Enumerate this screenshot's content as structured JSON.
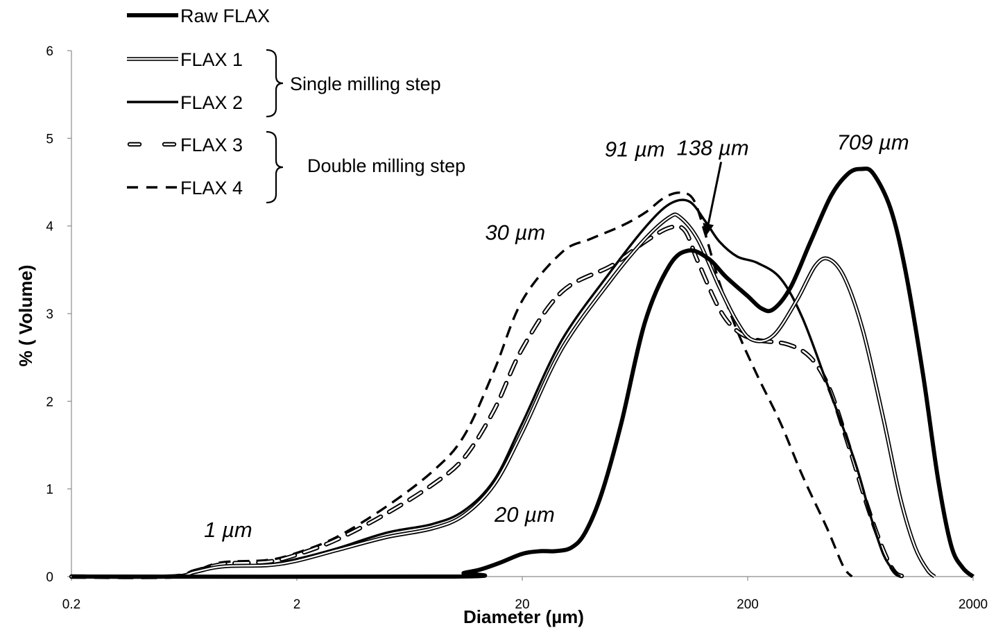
{
  "chart_data": {
    "type": "line",
    "xscale": "log",
    "xlim": [
      0.2,
      2000
    ],
    "ylim": [
      0,
      6
    ],
    "xlabel": "Diameter (µm)",
    "ylabel": "% ( Volume)",
    "x_ticks": [
      0.2,
      2,
      20,
      200,
      2000
    ],
    "x_tick_labels": [
      "0.2",
      "2",
      "20",
      "200",
      "2000"
    ],
    "y_ticks": [
      0,
      1,
      2,
      3,
      4,
      5,
      6
    ],
    "y_tick_labels": [
      "0",
      "1",
      "2",
      "3",
      "4",
      "5",
      "6"
    ],
    "grid": false,
    "legend_position": "top-left",
    "series": [
      {
        "name": "Raw FLAX",
        "style": "thick-solid",
        "color": "#000000",
        "points": [
          [
            0.2,
            0
          ],
          [
            10,
            0
          ],
          [
            11,
            0.04
          ],
          [
            13,
            0.08
          ],
          [
            16,
            0.16
          ],
          [
            20,
            0.26
          ],
          [
            24,
            0.29
          ],
          [
            28,
            0.29
          ],
          [
            33,
            0.33
          ],
          [
            38,
            0.5
          ],
          [
            45,
            0.95
          ],
          [
            55,
            1.75
          ],
          [
            70,
            2.9
          ],
          [
            90,
            3.55
          ],
          [
            110,
            3.72
          ],
          [
            135,
            3.62
          ],
          [
            160,
            3.42
          ],
          [
            200,
            3.2
          ],
          [
            230,
            3.06
          ],
          [
            260,
            3.05
          ],
          [
            310,
            3.3
          ],
          [
            380,
            3.82
          ],
          [
            470,
            4.35
          ],
          [
            560,
            4.6
          ],
          [
            640,
            4.65
          ],
          [
            720,
            4.6
          ],
          [
            860,
            4.2
          ],
          [
            1000,
            3.5
          ],
          [
            1200,
            2.3
          ],
          [
            1400,
            1.1
          ],
          [
            1600,
            0.35
          ],
          [
            1800,
            0.1
          ],
          [
            2000,
            0
          ]
        ]
      },
      {
        "name": "FLAX 1",
        "style": "double-line",
        "color": "#000000",
        "points": [
          [
            0.2,
            0
          ],
          [
            0.55,
            0
          ],
          [
            0.7,
            0.05
          ],
          [
            0.85,
            0.1
          ],
          [
            1,
            0.12
          ],
          [
            1.5,
            0.13
          ],
          [
            2,
            0.18
          ],
          [
            3,
            0.3
          ],
          [
            5,
            0.45
          ],
          [
            8,
            0.55
          ],
          [
            11,
            0.7
          ],
          [
            15,
            1.05
          ],
          [
            20,
            1.65
          ],
          [
            30,
            2.6
          ],
          [
            50,
            3.4
          ],
          [
            70,
            3.85
          ],
          [
            90,
            4.1
          ],
          [
            100,
            4.1
          ],
          [
            120,
            3.85
          ],
          [
            150,
            3.3
          ],
          [
            180,
            2.9
          ],
          [
            210,
            2.7
          ],
          [
            260,
            2.75
          ],
          [
            330,
            3.15
          ],
          [
            400,
            3.55
          ],
          [
            460,
            3.62
          ],
          [
            540,
            3.4
          ],
          [
            650,
            2.8
          ],
          [
            800,
            1.8
          ],
          [
            950,
            0.9
          ],
          [
            1100,
            0.35
          ],
          [
            1250,
            0.08
          ],
          [
            1350,
            0
          ]
        ]
      },
      {
        "name": "FLAX 2",
        "style": "solid",
        "color": "#000000",
        "points": [
          [
            0.2,
            0
          ],
          [
            0.55,
            0
          ],
          [
            0.7,
            0.05
          ],
          [
            0.85,
            0.1
          ],
          [
            1,
            0.12
          ],
          [
            1.5,
            0.14
          ],
          [
            2,
            0.2
          ],
          [
            3,
            0.32
          ],
          [
            5,
            0.5
          ],
          [
            8,
            0.6
          ],
          [
            11,
            0.75
          ],
          [
            15,
            1.1
          ],
          [
            20,
            1.75
          ],
          [
            30,
            2.7
          ],
          [
            50,
            3.5
          ],
          [
            70,
            3.98
          ],
          [
            90,
            4.25
          ],
          [
            110,
            4.28
          ],
          [
            130,
            4.05
          ],
          [
            150,
            3.82
          ],
          [
            180,
            3.65
          ],
          [
            220,
            3.58
          ],
          [
            280,
            3.4
          ],
          [
            350,
            2.95
          ],
          [
            450,
            2.2
          ],
          [
            600,
            1.3
          ],
          [
            700,
            0.7
          ],
          [
            800,
            0.25
          ],
          [
            900,
            0.05
          ],
          [
            950,
            0
          ]
        ]
      },
      {
        "name": "FLAX 3",
        "style": "dashed-double",
        "color": "#000000",
        "points": [
          [
            0.2,
            0
          ],
          [
            0.55,
            0
          ],
          [
            0.7,
            0.06
          ],
          [
            0.85,
            0.12
          ],
          [
            1,
            0.15
          ],
          [
            1.5,
            0.17
          ],
          [
            2,
            0.25
          ],
          [
            3,
            0.42
          ],
          [
            5,
            0.72
          ],
          [
            8,
            1.05
          ],
          [
            11,
            1.35
          ],
          [
            15,
            1.9
          ],
          [
            20,
            2.6
          ],
          [
            30,
            3.25
          ],
          [
            50,
            3.55
          ],
          [
            70,
            3.82
          ],
          [
            90,
            3.98
          ],
          [
            105,
            3.95
          ],
          [
            120,
            3.6
          ],
          [
            150,
            3.05
          ],
          [
            180,
            2.8
          ],
          [
            220,
            2.7
          ],
          [
            300,
            2.65
          ],
          [
            380,
            2.5
          ],
          [
            460,
            2.15
          ],
          [
            560,
            1.5
          ],
          [
            680,
            0.8
          ],
          [
            800,
            0.3
          ],
          [
            900,
            0.05
          ],
          [
            1000,
            0
          ]
        ]
      },
      {
        "name": "FLAX 4",
        "style": "dashed",
        "color": "#000000",
        "points": [
          [
            0.2,
            0
          ],
          [
            0.55,
            0
          ],
          [
            0.7,
            0.06
          ],
          [
            0.85,
            0.14
          ],
          [
            1,
            0.17
          ],
          [
            1.5,
            0.19
          ],
          [
            2,
            0.27
          ],
          [
            3,
            0.45
          ],
          [
            5,
            0.8
          ],
          [
            8,
            1.2
          ],
          [
            11,
            1.6
          ],
          [
            15,
            2.35
          ],
          [
            20,
            3.15
          ],
          [
            30,
            3.7
          ],
          [
            40,
            3.85
          ],
          [
            55,
            4.0
          ],
          [
            70,
            4.15
          ],
          [
            85,
            4.32
          ],
          [
            100,
            4.38
          ],
          [
            115,
            4.3
          ],
          [
            130,
            3.9
          ],
          [
            150,
            3.35
          ],
          [
            180,
            2.8
          ],
          [
            220,
            2.3
          ],
          [
            280,
            1.75
          ],
          [
            350,
            1.15
          ],
          [
            450,
            0.55
          ],
          [
            530,
            0.12
          ],
          [
            580,
            0
          ]
        ]
      }
    ],
    "annotations": [
      {
        "text": "1 µm",
        "x": 1,
        "y": 0.12
      },
      {
        "text": "20 µm",
        "x": 20,
        "y": 0.26
      },
      {
        "text": "30 µm",
        "x": 30,
        "y": 3.7
      },
      {
        "text": "91 µm",
        "x": 91,
        "y": 4.38
      },
      {
        "text": "138 µm",
        "x": 138,
        "y": 3.82
      },
      {
        "text": "709 µm",
        "x": 709,
        "y": 4.65
      }
    ],
    "legend_groups": [
      {
        "label": "Single milling step",
        "series": [
          "FLAX 1",
          "FLAX 2"
        ]
      },
      {
        "label": "Double milling step",
        "series": [
          "FLAX 3",
          "FLAX 4"
        ]
      }
    ]
  }
}
